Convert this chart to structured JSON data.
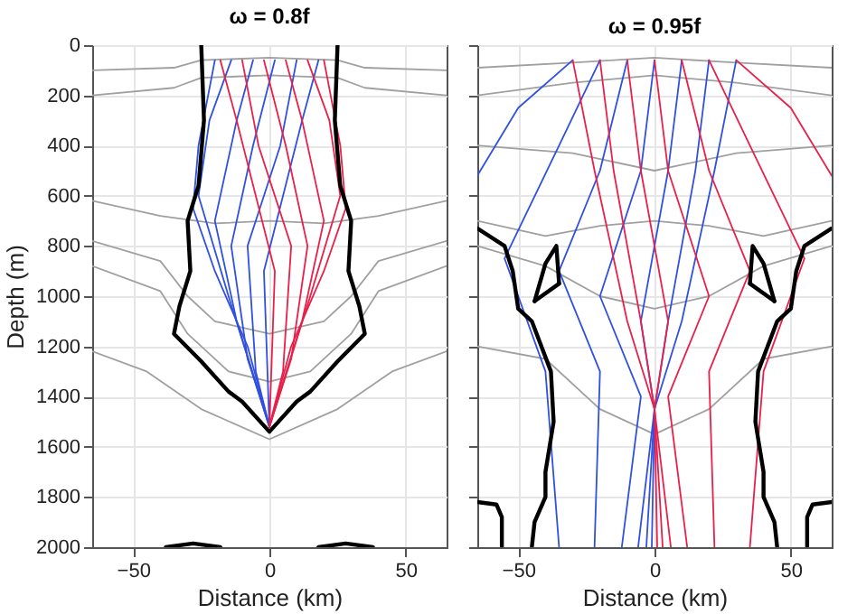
{
  "chart_data": [
    {
      "type": "line",
      "title": "ω = 0.8f",
      "xlabel": "Distance (km)",
      "ylabel": "Depth (m)",
      "xlim": [
        -65,
        65
      ],
      "ylim": [
        2000,
        0
      ],
      "xticks": [
        -50,
        0,
        50
      ],
      "yticks": [
        0,
        200,
        400,
        600,
        800,
        1000,
        1200,
        1400,
        1600,
        1800,
        2000
      ],
      "grid": true,
      "series": [
        {
          "color": "#a0a0a0",
          "x": [
            -65,
            -35,
            -25,
            0,
            25,
            35,
            65
          ],
          "values": [
            100,
            90,
            60,
            50,
            60,
            90,
            100
          ]
        },
        {
          "color": "#a0a0a0",
          "x": [
            -65,
            -35,
            -25,
            0,
            25,
            35,
            65
          ],
          "values": [
            200,
            170,
            130,
            120,
            130,
            170,
            200
          ]
        },
        {
          "color": "#a0a0a0",
          "x": [
            -65,
            -40,
            -20,
            0,
            20,
            40,
            65
          ],
          "values": [
            620,
            680,
            710,
            700,
            710,
            680,
            620
          ]
        },
        {
          "color": "#a0a0a0",
          "x": [
            -65,
            -40,
            -30,
            -20,
            0,
            20,
            30,
            40,
            65
          ],
          "values": [
            780,
            860,
            1000,
            1100,
            1150,
            1100,
            1000,
            860,
            780
          ]
        },
        {
          "color": "#a0a0a0",
          "x": [
            -65,
            -40,
            -30,
            -15,
            0,
            15,
            30,
            40,
            65
          ],
          "values": [
            880,
            980,
            1150,
            1300,
            1340,
            1300,
            1150,
            980,
            880
          ]
        },
        {
          "color": "#a0a0a0",
          "x": [
            -65,
            -45,
            -25,
            0,
            25,
            45,
            65
          ],
          "values": [
            1220,
            1300,
            1450,
            1570,
            1450,
            1300,
            1220
          ]
        },
        {
          "color": "#3050e0",
          "x": [
            -20,
            -26,
            -28,
            -20,
            -8,
            0
          ],
          "values": [
            60,
            400,
            650,
            900,
            1200,
            1520
          ]
        },
        {
          "color": "#3050e0",
          "x": [
            -14,
            -22,
            -26,
            -15,
            0
          ],
          "values": [
            60,
            300,
            600,
            1000,
            1520
          ]
        },
        {
          "color": "#3050e0",
          "x": [
            -6,
            -12,
            -20,
            -12,
            0
          ],
          "values": [
            60,
            300,
            700,
            1100,
            1520
          ]
        },
        {
          "color": "#3050e0",
          "x": [
            2,
            -6,
            -14,
            -8,
            0
          ],
          "values": [
            60,
            400,
            800,
            1250,
            1520
          ]
        },
        {
          "color": "#3050e0",
          "x": [
            10,
            4,
            -8,
            -5,
            0
          ],
          "values": [
            60,
            400,
            800,
            1300,
            1520
          ]
        },
        {
          "color": "#3050e0",
          "x": [
            18,
            12,
            -2,
            0
          ],
          "values": [
            60,
            300,
            900,
            1520
          ]
        },
        {
          "color": "#e8204a",
          "x": [
            20,
            26,
            28,
            20,
            8,
            0
          ],
          "values": [
            60,
            400,
            650,
            900,
            1200,
            1520
          ]
        },
        {
          "color": "#e8204a",
          "x": [
            14,
            22,
            26,
            15,
            0
          ],
          "values": [
            60,
            300,
            600,
            1000,
            1520
          ]
        },
        {
          "color": "#e8204a",
          "x": [
            6,
            12,
            20,
            12,
            0
          ],
          "values": [
            60,
            300,
            700,
            1100,
            1520
          ]
        },
        {
          "color": "#e8204a",
          "x": [
            -2,
            6,
            14,
            8,
            0
          ],
          "values": [
            60,
            400,
            800,
            1250,
            1520
          ]
        },
        {
          "color": "#e8204a",
          "x": [
            -10,
            -4,
            8,
            5,
            0
          ],
          "values": [
            60,
            400,
            800,
            1300,
            1520
          ]
        },
        {
          "color": "#e8204a",
          "x": [
            -18,
            -12,
            2,
            0
          ],
          "values": [
            60,
            300,
            900,
            1520
          ]
        },
        {
          "color": "#000000",
          "x": [
            -25,
            -24,
            -26,
            -30,
            -29,
            -33,
            -35,
            -25,
            -15,
            -10,
            0,
            10,
            15,
            25,
            35,
            33,
            29,
            30,
            26,
            24,
            25
          ],
          "values": [
            0,
            300,
            560,
            700,
            900,
            1040,
            1150,
            1260,
            1380,
            1420,
            1540,
            1420,
            1380,
            1260,
            1150,
            1040,
            900,
            700,
            560,
            300,
            0
          ]
        },
        {
          "color": "#000000",
          "x": [
            -38,
            -28,
            -18
          ],
          "values": [
            2000,
            1985,
            2000
          ]
        },
        {
          "color": "#000000",
          "x": [
            18,
            28,
            38
          ],
          "values": [
            2000,
            1985,
            2000
          ]
        }
      ]
    },
    {
      "type": "line",
      "title": "ω = 0.95f",
      "xlabel": "Distance (km)",
      "xlim": [
        -65,
        65
      ],
      "ylim": [
        2000,
        0
      ],
      "xticks": [
        -50,
        0,
        50
      ],
      "yticks": [
        0,
        200,
        400,
        600,
        800,
        1000,
        1200,
        1400,
        1600,
        1800,
        2000
      ],
      "grid": true,
      "tick_labels": "x",
      "series": [
        {
          "color": "#a0a0a0",
          "x": [
            -65,
            -30,
            0,
            30,
            65
          ],
          "values": [
            90,
            70,
            50,
            70,
            90
          ]
        },
        {
          "color": "#a0a0a0",
          "x": [
            -65,
            -30,
            0,
            30,
            65
          ],
          "values": [
            200,
            150,
            120,
            150,
            200
          ]
        },
        {
          "color": "#a0a0a0",
          "x": [
            -65,
            -30,
            0,
            30,
            65
          ],
          "values": [
            400,
            430,
            500,
            430,
            400
          ]
        },
        {
          "color": "#a0a0a0",
          "x": [
            -65,
            -40,
            -20,
            0,
            20,
            40,
            65
          ],
          "values": [
            700,
            760,
            720,
            700,
            720,
            760,
            700
          ]
        },
        {
          "color": "#a0a0a0",
          "x": [
            -65,
            -40,
            -20,
            0,
            20,
            40,
            65
          ],
          "values": [
            800,
            880,
            1000,
            1050,
            1000,
            880,
            800
          ]
        },
        {
          "color": "#a0a0a0",
          "x": [
            -65,
            -40,
            -20,
            0,
            20,
            40,
            65
          ],
          "values": [
            1200,
            1250,
            1450,
            1550,
            1450,
            1250,
            1200
          ]
        },
        {
          "color": "#3050e0",
          "x": [
            -30,
            -50,
            -65
          ],
          "values": [
            60,
            250,
            520
          ]
        },
        {
          "color": "#3050e0",
          "x": [
            -20,
            -35,
            -55,
            -40,
            -35
          ],
          "values": [
            60,
            400,
            850,
            1300,
            2000
          ]
        },
        {
          "color": "#3050e0",
          "x": [
            -10,
            -20,
            -35,
            -20,
            -22
          ],
          "values": [
            60,
            500,
            900,
            1300,
            2000
          ]
        },
        {
          "color": "#3050e0",
          "x": [
            0,
            -5,
            -20,
            -5,
            -12
          ],
          "values": [
            60,
            500,
            1000,
            1400,
            2000
          ]
        },
        {
          "color": "#3050e0",
          "x": [
            10,
            5,
            -5,
            0,
            -6
          ],
          "values": [
            60,
            500,
            1100,
            1450,
            2000
          ]
        },
        {
          "color": "#3050e0",
          "x": [
            20,
            15,
            5,
            0,
            -3
          ],
          "values": [
            60,
            500,
            1100,
            1450,
            2000
          ]
        },
        {
          "color": "#3050e0",
          "x": [
            30,
            22,
            10,
            0,
            -1
          ],
          "values": [
            60,
            500,
            1100,
            1450,
            2000
          ]
        },
        {
          "color": "#e8204a",
          "x": [
            30,
            50,
            65
          ],
          "values": [
            60,
            250,
            520
          ]
        },
        {
          "color": "#e8204a",
          "x": [
            20,
            35,
            55,
            40,
            35
          ],
          "values": [
            60,
            400,
            850,
            1300,
            2000
          ]
        },
        {
          "color": "#e8204a",
          "x": [
            10,
            20,
            35,
            20,
            22
          ],
          "values": [
            60,
            500,
            900,
            1300,
            2000
          ]
        },
        {
          "color": "#e8204a",
          "x": [
            0,
            5,
            20,
            5,
            12
          ],
          "values": [
            60,
            500,
            1000,
            1400,
            2000
          ]
        },
        {
          "color": "#e8204a",
          "x": [
            -10,
            -5,
            5,
            0,
            6
          ],
          "values": [
            60,
            500,
            1100,
            1450,
            2000
          ]
        },
        {
          "color": "#e8204a",
          "x": [
            -20,
            -15,
            -5,
            0,
            3
          ],
          "values": [
            60,
            500,
            1100,
            1450,
            2000
          ]
        },
        {
          "color": "#e8204a",
          "x": [
            -30,
            -22,
            -10,
            0,
            1
          ],
          "values": [
            60,
            500,
            1100,
            1450,
            2000
          ]
        },
        {
          "color": "#000000",
          "x": [
            -45,
            -44,
            -40,
            -40,
            -37,
            -38,
            -45,
            -50,
            -52,
            -55,
            -65
          ],
          "values": [
            2000,
            1900,
            1800,
            1700,
            1500,
            1300,
            1100,
            1050,
            900,
            800,
            730
          ]
        },
        {
          "color": "#000000",
          "x": [
            45,
            44,
            40,
            40,
            37,
            38,
            45,
            50,
            52,
            55,
            65
          ],
          "values": [
            2000,
            1900,
            1800,
            1700,
            1500,
            1300,
            1100,
            1050,
            900,
            800,
            730
          ]
        },
        {
          "color": "#000000",
          "x": [
            -44,
            -40,
            -36,
            -35
          ],
          "values": [
            1020,
            870,
            800,
            950
          ]
        },
        {
          "color": "#000000",
          "x": [
            -44,
            -35
          ],
          "values": [
            1020,
            950
          ]
        },
        {
          "color": "#000000",
          "x": [
            35,
            36,
            40,
            44
          ],
          "values": [
            950,
            800,
            870,
            1020
          ]
        },
        {
          "color": "#000000",
          "x": [
            35,
            44
          ],
          "values": [
            950,
            1020
          ]
        },
        {
          "color": "#000000",
          "x": [
            -65,
            -58,
            -56,
            -56
          ],
          "values": [
            1820,
            1830,
            1880,
            2000
          ]
        },
        {
          "color": "#000000",
          "x": [
            56,
            56,
            58,
            65
          ],
          "values": [
            2000,
            1880,
            1830,
            1820
          ]
        }
      ]
    }
  ]
}
